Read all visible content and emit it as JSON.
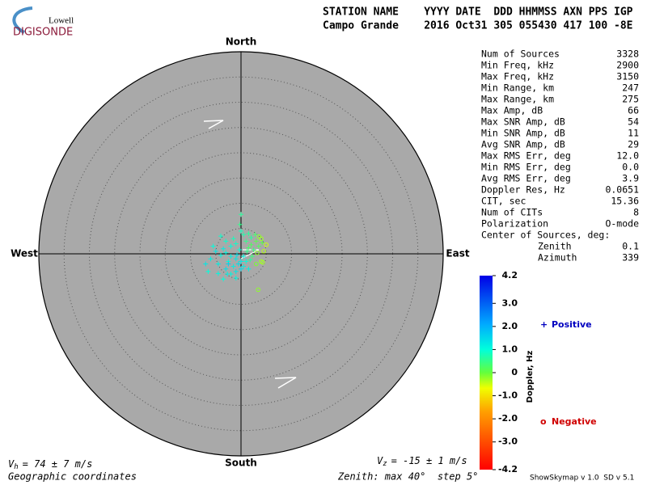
{
  "header": {
    "logo_top": "Lowell",
    "logo_bottom": "DIGISONDE",
    "columns_line": "STATION NAME    YYYY DATE  DDD HHMMSS AXN PPS IGP",
    "values_line": "Campo Grande    2016 Oct31 305 055430 417 100 -8E"
  },
  "stats": {
    "rows": [
      [
        "Num of Sources",
        "3328"
      ],
      [
        "Min Freq, kHz",
        "2900"
      ],
      [
        "Max Freq, kHz",
        "3150"
      ],
      [
        "Min Range, km",
        "247"
      ],
      [
        "Max Range, km",
        "275"
      ],
      [
        "Max Amp, dB",
        "66"
      ],
      [
        "Max SNR Amp, dB",
        "54"
      ],
      [
        "Min SNR Amp, dB",
        "11"
      ],
      [
        "Avg SNR Amp, dB",
        "29"
      ],
      [
        "Max RMS Err, deg",
        "12.0"
      ],
      [
        "Min RMS Err, deg",
        "0.0"
      ],
      [
        "Avg RMS Err, deg",
        "3.9"
      ],
      [
        "Doppler Res, Hz",
        "0.0651"
      ],
      [
        "CIT, sec",
        "15.36"
      ],
      [
        "Num of CITs",
        "8"
      ],
      [
        "Polarization",
        "O-mode"
      ]
    ],
    "center_title": "Center of Sources, deg:",
    "center_rows": [
      [
        "Zenith",
        "0.1"
      ],
      [
        "Azimuth",
        "339"
      ]
    ]
  },
  "chart_data": {
    "type": "skymap",
    "directions": {
      "north": "North",
      "south": "South",
      "west": "West",
      "east": "East"
    },
    "rlim": [
      0,
      40
    ],
    "rticks": [
      5,
      10,
      15,
      20,
      25,
      30,
      35
    ],
    "x": [
      -1,
      -2,
      -3,
      -0.5,
      0,
      -1.5,
      -2.5,
      -4,
      -3.5,
      -2,
      -1,
      0.5,
      -0.3,
      -4.5,
      -5,
      -3,
      -1,
      0,
      0.5,
      -2,
      -6,
      -5.5,
      -3,
      -1.5,
      -7,
      -6.5,
      -4,
      -2.5,
      -0.8,
      1,
      1.5,
      -1,
      -3.5,
      1.5,
      2,
      2.5,
      1,
      3,
      2,
      3.5,
      1.2,
      0.5,
      0,
      1.5,
      2.8,
      4,
      3.2,
      4.5,
      2.2,
      4,
      5,
      4.2,
      3.6,
      1.8,
      3,
      -0.2,
      0,
      4.3,
      3.4,
      -2.7,
      -4.5
    ],
    "y": [
      -1,
      -0.5,
      0.2,
      -2,
      -1.5,
      -2.5,
      -1.5,
      -0.3,
      1,
      1.5,
      2,
      -0.5,
      0.8,
      -2,
      0.5,
      -3,
      -3.5,
      -3,
      -2.5,
      -4,
      -1,
      1.5,
      2.5,
      3,
      -2,
      -3.5,
      3.5,
      -2,
      -0.2,
      -1.5,
      -3,
      -4.8,
      -5,
      1.2,
      1.8,
      0.8,
      2.5,
      2.5,
      3.2,
      1.5,
      0.5,
      3.8,
      4.5,
      4,
      3.8,
      3,
      0.2,
      0.5,
      -0.5,
      -1.5,
      1.8,
      2.2,
      3.4,
      -1.2,
      -2,
      5.8,
      7.8,
      -1.7,
      -7.1,
      -4,
      -3.9
    ],
    "doppler": [
      1.3,
      1.2,
      1.1,
      1.4,
      1.3,
      1.2,
      1.0,
      1.1,
      1.2,
      1.0,
      0.9,
      1.1,
      1.0,
      1.2,
      1.3,
      1.4,
      1.3,
      1.5,
      1.2,
      1.1,
      1.2,
      1.0,
      0.9,
      0.8,
      1.3,
      1.0,
      0.9,
      1.6,
      1.4,
      1.0,
      1.2,
      1.1,
      1.0,
      0.3,
      0.2,
      0.4,
      0.5,
      0.1,
      0.6,
      0.2,
      0.5,
      0.7,
      0.8,
      0.6,
      0.3,
      -0.3,
      -0.2,
      -0.4,
      0.4,
      -0.3,
      -0.5,
      0.1,
      -0.2,
      0.6,
      -0.1,
      0.5,
      0.6,
      -0.3,
      -0.2,
      1.2,
      1.1
    ],
    "colorbar": {
      "label": "Doppler, Hz",
      "ylim": [
        -4.2,
        4.2
      ],
      "yticks": [
        {
          "value": 4.2,
          "label": "4.2"
        },
        {
          "value": 3,
          "label": "3.0"
        },
        {
          "value": 2,
          "label": "2.0"
        },
        {
          "value": 1,
          "label": "1.0"
        },
        0,
        {
          "value": -1,
          "label": "-1.0"
        },
        {
          "value": -2,
          "label": "-2.0"
        },
        {
          "value": -3,
          "label": "-3.0"
        },
        {
          "value": -4.2,
          "label": "-4.2"
        }
      ]
    },
    "legend": {
      "positive_symbol": "+",
      "positive": "Positive",
      "negative_symbol": "o",
      "negative": "Negative"
    }
  },
  "footer": {
    "vh_symbol": "V",
    "vh_sub": "h",
    "vh_text": "= 74 ± 7 m/s",
    "vz_symbol": "V",
    "vz_sub": "z",
    "vz_text": "= -15 ± 1 m/s",
    "coords": "Geographic coordinates",
    "zenith": "Zenith: max 40°  step 5°",
    "version": "ShowSkymap v 1.0  SD v 5.1"
  }
}
